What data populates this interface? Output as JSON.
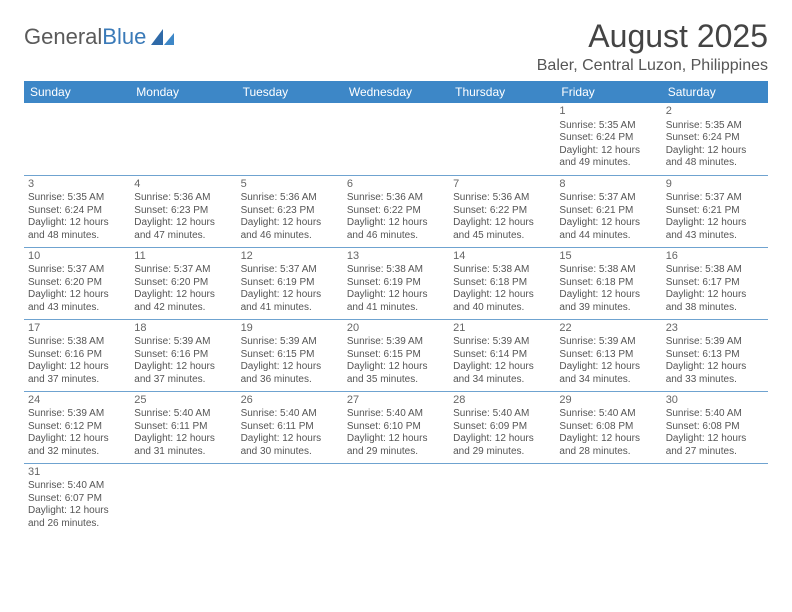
{
  "logo": {
    "text_general": "General",
    "text_blue": "Blue"
  },
  "title": "August 2025",
  "location": "Baler, Central Luzon, Philippines",
  "colors": {
    "header_bg": "#3d87c7",
    "header_text": "#ffffff",
    "cell_border": "#6fa3d0",
    "body_text": "#555555",
    "logo_gray": "#5a5a5a",
    "logo_blue": "#3a7ab8"
  },
  "day_headers": [
    "Sunday",
    "Monday",
    "Tuesday",
    "Wednesday",
    "Thursday",
    "Friday",
    "Saturday"
  ],
  "weeks": [
    [
      null,
      null,
      null,
      null,
      null,
      {
        "n": "1",
        "sr": "Sunrise: 5:35 AM",
        "ss": "Sunset: 6:24 PM",
        "d1": "Daylight: 12 hours",
        "d2": "and 49 minutes."
      },
      {
        "n": "2",
        "sr": "Sunrise: 5:35 AM",
        "ss": "Sunset: 6:24 PM",
        "d1": "Daylight: 12 hours",
        "d2": "and 48 minutes."
      }
    ],
    [
      {
        "n": "3",
        "sr": "Sunrise: 5:35 AM",
        "ss": "Sunset: 6:24 PM",
        "d1": "Daylight: 12 hours",
        "d2": "and 48 minutes."
      },
      {
        "n": "4",
        "sr": "Sunrise: 5:36 AM",
        "ss": "Sunset: 6:23 PM",
        "d1": "Daylight: 12 hours",
        "d2": "and 47 minutes."
      },
      {
        "n": "5",
        "sr": "Sunrise: 5:36 AM",
        "ss": "Sunset: 6:23 PM",
        "d1": "Daylight: 12 hours",
        "d2": "and 46 minutes."
      },
      {
        "n": "6",
        "sr": "Sunrise: 5:36 AM",
        "ss": "Sunset: 6:22 PM",
        "d1": "Daylight: 12 hours",
        "d2": "and 46 minutes."
      },
      {
        "n": "7",
        "sr": "Sunrise: 5:36 AM",
        "ss": "Sunset: 6:22 PM",
        "d1": "Daylight: 12 hours",
        "d2": "and 45 minutes."
      },
      {
        "n": "8",
        "sr": "Sunrise: 5:37 AM",
        "ss": "Sunset: 6:21 PM",
        "d1": "Daylight: 12 hours",
        "d2": "and 44 minutes."
      },
      {
        "n": "9",
        "sr": "Sunrise: 5:37 AM",
        "ss": "Sunset: 6:21 PM",
        "d1": "Daylight: 12 hours",
        "d2": "and 43 minutes."
      }
    ],
    [
      {
        "n": "10",
        "sr": "Sunrise: 5:37 AM",
        "ss": "Sunset: 6:20 PM",
        "d1": "Daylight: 12 hours",
        "d2": "and 43 minutes."
      },
      {
        "n": "11",
        "sr": "Sunrise: 5:37 AM",
        "ss": "Sunset: 6:20 PM",
        "d1": "Daylight: 12 hours",
        "d2": "and 42 minutes."
      },
      {
        "n": "12",
        "sr": "Sunrise: 5:37 AM",
        "ss": "Sunset: 6:19 PM",
        "d1": "Daylight: 12 hours",
        "d2": "and 41 minutes."
      },
      {
        "n": "13",
        "sr": "Sunrise: 5:38 AM",
        "ss": "Sunset: 6:19 PM",
        "d1": "Daylight: 12 hours",
        "d2": "and 41 minutes."
      },
      {
        "n": "14",
        "sr": "Sunrise: 5:38 AM",
        "ss": "Sunset: 6:18 PM",
        "d1": "Daylight: 12 hours",
        "d2": "and 40 minutes."
      },
      {
        "n": "15",
        "sr": "Sunrise: 5:38 AM",
        "ss": "Sunset: 6:18 PM",
        "d1": "Daylight: 12 hours",
        "d2": "and 39 minutes."
      },
      {
        "n": "16",
        "sr": "Sunrise: 5:38 AM",
        "ss": "Sunset: 6:17 PM",
        "d1": "Daylight: 12 hours",
        "d2": "and 38 minutes."
      }
    ],
    [
      {
        "n": "17",
        "sr": "Sunrise: 5:38 AM",
        "ss": "Sunset: 6:16 PM",
        "d1": "Daylight: 12 hours",
        "d2": "and 37 minutes."
      },
      {
        "n": "18",
        "sr": "Sunrise: 5:39 AM",
        "ss": "Sunset: 6:16 PM",
        "d1": "Daylight: 12 hours",
        "d2": "and 37 minutes."
      },
      {
        "n": "19",
        "sr": "Sunrise: 5:39 AM",
        "ss": "Sunset: 6:15 PM",
        "d1": "Daylight: 12 hours",
        "d2": "and 36 minutes."
      },
      {
        "n": "20",
        "sr": "Sunrise: 5:39 AM",
        "ss": "Sunset: 6:15 PM",
        "d1": "Daylight: 12 hours",
        "d2": "and 35 minutes."
      },
      {
        "n": "21",
        "sr": "Sunrise: 5:39 AM",
        "ss": "Sunset: 6:14 PM",
        "d1": "Daylight: 12 hours",
        "d2": "and 34 minutes."
      },
      {
        "n": "22",
        "sr": "Sunrise: 5:39 AM",
        "ss": "Sunset: 6:13 PM",
        "d1": "Daylight: 12 hours",
        "d2": "and 34 minutes."
      },
      {
        "n": "23",
        "sr": "Sunrise: 5:39 AM",
        "ss": "Sunset: 6:13 PM",
        "d1": "Daylight: 12 hours",
        "d2": "and 33 minutes."
      }
    ],
    [
      {
        "n": "24",
        "sr": "Sunrise: 5:39 AM",
        "ss": "Sunset: 6:12 PM",
        "d1": "Daylight: 12 hours",
        "d2": "and 32 minutes."
      },
      {
        "n": "25",
        "sr": "Sunrise: 5:40 AM",
        "ss": "Sunset: 6:11 PM",
        "d1": "Daylight: 12 hours",
        "d2": "and 31 minutes."
      },
      {
        "n": "26",
        "sr": "Sunrise: 5:40 AM",
        "ss": "Sunset: 6:11 PM",
        "d1": "Daylight: 12 hours",
        "d2": "and 30 minutes."
      },
      {
        "n": "27",
        "sr": "Sunrise: 5:40 AM",
        "ss": "Sunset: 6:10 PM",
        "d1": "Daylight: 12 hours",
        "d2": "and 29 minutes."
      },
      {
        "n": "28",
        "sr": "Sunrise: 5:40 AM",
        "ss": "Sunset: 6:09 PM",
        "d1": "Daylight: 12 hours",
        "d2": "and 29 minutes."
      },
      {
        "n": "29",
        "sr": "Sunrise: 5:40 AM",
        "ss": "Sunset: 6:08 PM",
        "d1": "Daylight: 12 hours",
        "d2": "and 28 minutes."
      },
      {
        "n": "30",
        "sr": "Sunrise: 5:40 AM",
        "ss": "Sunset: 6:08 PM",
        "d1": "Daylight: 12 hours",
        "d2": "and 27 minutes."
      }
    ],
    [
      {
        "n": "31",
        "sr": "Sunrise: 5:40 AM",
        "ss": "Sunset: 6:07 PM",
        "d1": "Daylight: 12 hours",
        "d2": "and 26 minutes."
      },
      null,
      null,
      null,
      null,
      null,
      null
    ]
  ]
}
